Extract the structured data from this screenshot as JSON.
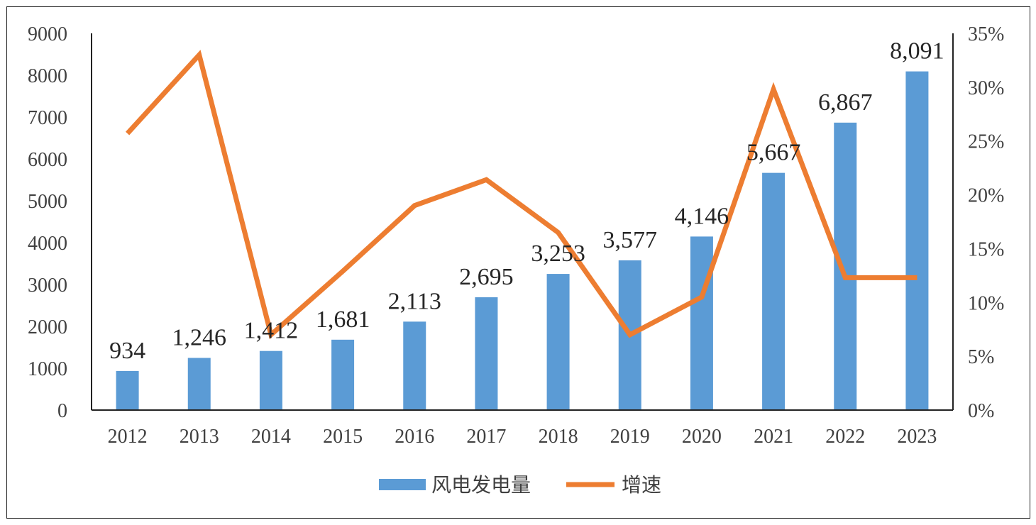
{
  "chart_data": {
    "type": "bar+line",
    "categories": [
      "2012",
      "2013",
      "2014",
      "2015",
      "2016",
      "2017",
      "2018",
      "2019",
      "2020",
      "2021",
      "2022",
      "2023"
    ],
    "series": [
      {
        "name": "风电发电量",
        "type": "bar",
        "axis": "left",
        "color": "#5B9BD5",
        "values": [
          934,
          1246,
          1412,
          1681,
          2113,
          2695,
          3253,
          3577,
          4146,
          5667,
          6867,
          8091
        ],
        "labels": [
          "934",
          "1,246",
          "1,412",
          "1,681",
          "2,113",
          "2,695",
          "3,253",
          "3,577",
          "4,146",
          "5,667",
          "6,867",
          "8,091"
        ]
      },
      {
        "name": "增速",
        "type": "line",
        "axis": "right",
        "color": "#ED7D31",
        "values": [
          25.7,
          33.0,
          7.0,
          12.9,
          19.0,
          21.4,
          16.5,
          7.0,
          10.5,
          29.8,
          12.3,
          12.3
        ]
      }
    ],
    "y_left": {
      "min": 0,
      "max": 9000,
      "ticks": [
        "0",
        "1000",
        "2000",
        "3000",
        "4000",
        "5000",
        "6000",
        "7000",
        "8000",
        "9000"
      ]
    },
    "y_right": {
      "min": 0,
      "max": 35,
      "ticks": [
        "0%",
        "5%",
        "10%",
        "15%",
        "20%",
        "25%",
        "30%",
        "35%"
      ]
    },
    "legend_position": "bottom",
    "grid": false
  }
}
